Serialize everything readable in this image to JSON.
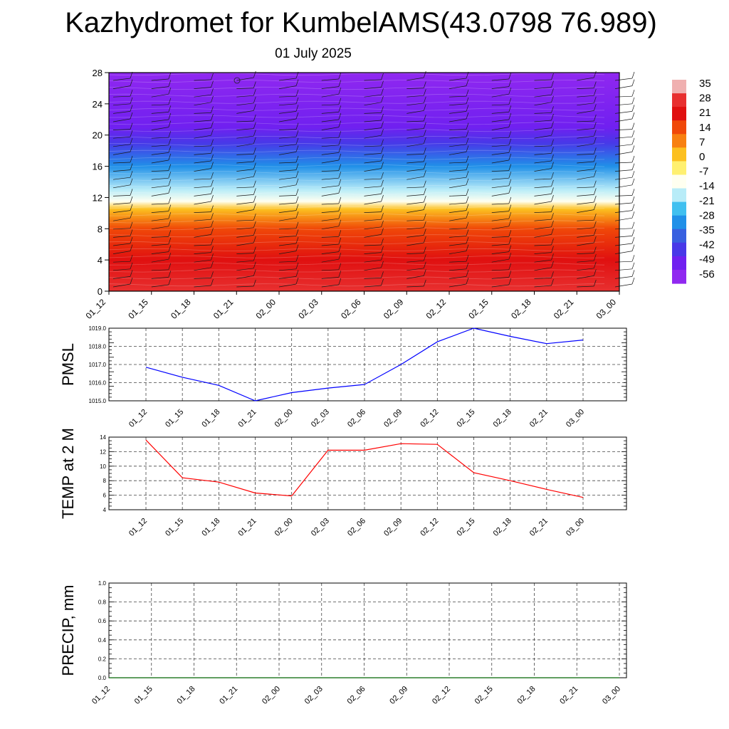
{
  "title": "Kazhydromet for KumbelAMS(43.0798 76.989)",
  "subtitle": "01 July 2025",
  "time_labels": [
    "01_12",
    "01_15",
    "01_18",
    "01_21",
    "02_00",
    "02_03",
    "02_06",
    "02_09",
    "02_12",
    "02_15",
    "02_18",
    "02_21",
    "03_00"
  ],
  "chart_data": [
    {
      "type": "heatmap",
      "description_axis": "height",
      "y_ticks": [
        0,
        4,
        8,
        12,
        16,
        20,
        24,
        28
      ],
      "ylim": [
        0,
        28
      ],
      "x": [
        "01_12",
        "01_15",
        "01_18",
        "01_21",
        "02_00",
        "02_03",
        "02_06",
        "02_09",
        "02_12",
        "02_15",
        "02_18",
        "02_21",
        "03_00"
      ],
      "temperature_profile": [
        {
          "level": 0,
          "value": 28
        },
        {
          "level": 4,
          "value": 22
        },
        {
          "level": 8,
          "value": 12
        },
        {
          "level": 10.5,
          "value": 0
        },
        {
          "level": 11.5,
          "value": -14
        },
        {
          "level": 13,
          "value": -20
        },
        {
          "level": 16,
          "value": -35
        },
        {
          "level": 19,
          "value": -49
        },
        {
          "level": 21,
          "value": -56
        },
        {
          "level": 28,
          "value": -60
        }
      ],
      "colorbar": {
        "labels": [
          "35",
          "28",
          "21",
          "14",
          "7",
          "0",
          "-7",
          "-14",
          "-21",
          "-28",
          "-35",
          "-42",
          "-49",
          "-56"
        ],
        "colors": [
          "#f0b0b0",
          "#e83030",
          "#e01010",
          "#f04808",
          "#f88010",
          "#fcc020",
          "#fff070",
          "#fffff0",
          "#b8ecf8",
          "#40c0f0",
          "#2090e8",
          "#3860e0",
          "#4838e8",
          "#7020f0",
          "#9028f0"
        ]
      },
      "wind_barbs": true
    },
    {
      "type": "line",
      "ylabel": "PMSL",
      "ylim": [
        1015.0,
        1019.0
      ],
      "y_ticks": [
        "1015.0",
        "1016.0",
        "1017.0",
        "1018.0",
        "1019.0"
      ],
      "x": [
        "01_12",
        "01_15",
        "01_18",
        "01_21",
        "02_00",
        "02_03",
        "02_06",
        "02_09",
        "02_12",
        "02_15",
        "02_18",
        "02_21",
        "03_00"
      ],
      "values": [
        1016.85,
        1016.3,
        1015.85,
        1015.0,
        1015.45,
        1015.7,
        1015.9,
        1017.0,
        1018.25,
        1019.0,
        1018.55,
        1018.15,
        1018.35
      ],
      "color": "#0000ff",
      "grid": true
    },
    {
      "type": "line",
      "ylabel": "TEMP at 2 M",
      "ylim": [
        4,
        14
      ],
      "y_ticks": [
        "4",
        "6",
        "8",
        "10",
        "12",
        "14"
      ],
      "x": [
        "01_12",
        "01_15",
        "01_18",
        "01_21",
        "02_00",
        "02_03",
        "02_06",
        "02_09",
        "02_12",
        "02_15",
        "02_18",
        "02_21",
        "03_00"
      ],
      "values": [
        13.6,
        8.4,
        7.8,
        6.3,
        5.9,
        12.2,
        12.2,
        13.1,
        13.0,
        9.1,
        8.0,
        6.8,
        5.7
      ],
      "color": "#ff0000",
      "grid": true
    },
    {
      "type": "line",
      "ylabel": "PRECIP, mm",
      "ylim": [
        0.0,
        1.0
      ],
      "y_ticks": [
        "0.0",
        "0.2",
        "0.4",
        "0.6",
        "0.8",
        "1.0"
      ],
      "x": [
        "01_12",
        "01_15",
        "01_18",
        "01_21",
        "02_00",
        "02_03",
        "02_06",
        "02_09",
        "02_12",
        "02_15",
        "02_18",
        "02_21",
        "03_00"
      ],
      "values": [
        0,
        0,
        0,
        0,
        0,
        0,
        0,
        0,
        0,
        0,
        0,
        0,
        0
      ],
      "color": "#006400",
      "grid": true
    }
  ]
}
